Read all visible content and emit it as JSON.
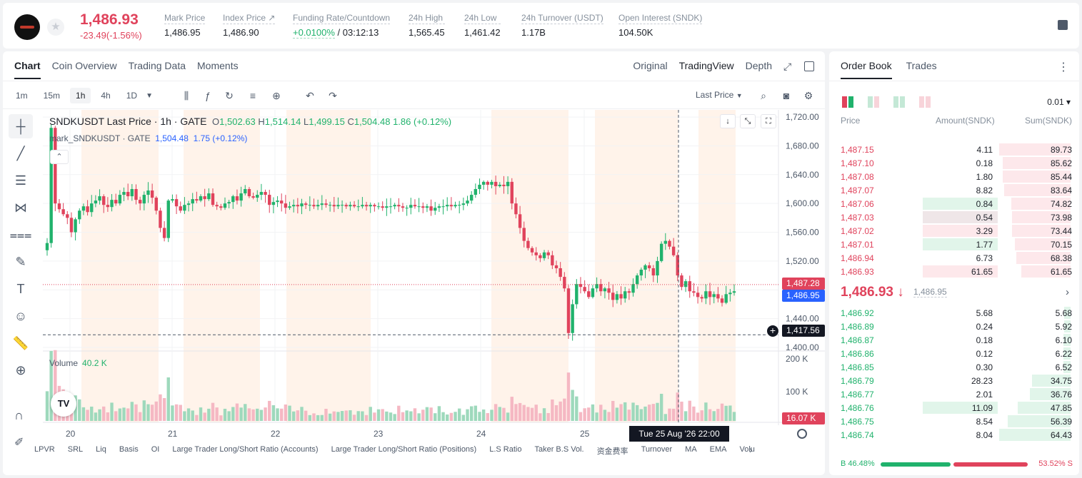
{
  "header": {
    "last_price": "1,486.93",
    "change": "-23.49(-1.56%)",
    "stats": [
      {
        "label": "Mark Price",
        "value": "1,486.95"
      },
      {
        "label": "Index Price ↗",
        "value": "1,486.90"
      },
      {
        "label": "Funding Rate/Countdown",
        "value_green": "+0.0100%",
        "value": " / 03:12:13"
      },
      {
        "label": "24h High",
        "value": "1,565.45"
      },
      {
        "label": "24h Low",
        "value": "1,461.42"
      },
      {
        "label": "24h Turnover (USDT)",
        "value": "1.17B"
      },
      {
        "label": "Open Interest (SNDK)",
        "value": "104.50K"
      }
    ]
  },
  "chart_tabs": {
    "left": [
      "Chart",
      "Coin Overview",
      "Trading Data",
      "Moments"
    ],
    "right": [
      "Original",
      "TradingView",
      "Depth"
    ]
  },
  "intervals": [
    "1m",
    "15m",
    "1h",
    "4h",
    "1D"
  ],
  "price_source": "Last Price",
  "legend": {
    "symbol": "SNDKUSDT Last Price · 1h · GATE",
    "o": "1,502.63",
    "h": "1,514.14",
    "l": "1,499.15",
    "c": "1,504.48",
    "chg": "1.86 (+0.12%)",
    "mark_name": "mark_SNDKUSDT · GATE",
    "mark_val": "1,504.48",
    "mark_chg": "1.75 (+0.12%)"
  },
  "volume_legend": {
    "label": "Volume",
    "value": "40.2 K"
  },
  "price_labels": {
    "last": "1,487.28",
    "mark": "1,486.95",
    "cross": "1,417.56",
    "vol": "16.07 K"
  },
  "time_label": "Tue 25 Aug '26   22:00",
  "tv_logo": "TV",
  "indicators": [
    "LPVR",
    "SRL",
    "Liq",
    "Basis",
    "OI",
    "Large Trader Long/Short Ratio (Accounts)",
    "Large Trader Long/Short Ratio (Positions)",
    "L.S Ratio",
    "Taker B.S Vol.",
    "资金费率",
    "Turnover",
    "MA",
    "EMA",
    "Volu"
  ],
  "colors": {
    "up": "#20b26c",
    "down": "#e0435c",
    "mark": "#2962ff"
  },
  "chart_data": {
    "type": "candlestick",
    "y_axis": {
      "ticks": [
        "1,720.00",
        "1,680.00",
        "1,640.00",
        "1,600.00",
        "1,560.00",
        "1,520.00",
        "1,480.00",
        "1,440.00",
        "1,400.00"
      ],
      "range": [
        1395,
        1730
      ]
    },
    "x_axis": {
      "ticks": [
        "20",
        "21",
        "22",
        "23",
        "24",
        "25"
      ]
    },
    "volume_axis": {
      "ticks": [
        "200 K",
        "100 K"
      ]
    },
    "close_series": [
      1545,
      1705,
      1600,
      1592,
      1585,
      1580,
      1560,
      1578,
      1590,
      1596,
      1588,
      1600,
      1604,
      1610,
      1598,
      1595,
      1605,
      1600,
      1612,
      1616,
      1610,
      1620,
      1605,
      1600,
      1612,
      1618,
      1608,
      1590,
      1566,
      1552,
      1604,
      1606,
      1596,
      1590,
      1598,
      1600,
      1606,
      1604,
      1610,
      1606,
      1614,
      1598,
      1596,
      1594,
      1600,
      1602,
      1610,
      1604,
      1614,
      1620,
      1610,
      1608,
      1612,
      1616,
      1612,
      1598,
      1602,
      1604,
      1600,
      1594,
      1596,
      1598,
      1596,
      1600,
      1598,
      1598,
      1596,
      1598,
      1600,
      1598,
      1598,
      1596,
      1598,
      1598,
      1596,
      1598,
      1596,
      1596,
      1598,
      1596,
      1598,
      1596,
      1596,
      1594,
      1596,
      1596,
      1598,
      1596,
      1594,
      1594,
      1598,
      1596,
      1596,
      1594,
      1596,
      1590,
      1594,
      1596,
      1596,
      1598,
      1596,
      1598,
      1598,
      1600,
      1604,
      1612,
      1620,
      1626,
      1630,
      1626,
      1630,
      1624,
      1626,
      1624,
      1630,
      1600,
      1585,
      1566,
      1548,
      1538,
      1532,
      1528,
      1524,
      1532,
      1528,
      1514,
      1510,
      1498,
      1482,
      1420,
      1460,
      1488,
      1484,
      1478,
      1470,
      1482,
      1488,
      1478,
      1482,
      1476,
      1466,
      1474,
      1468,
      1478,
      1476,
      1488,
      1500,
      1508,
      1514,
      1510,
      1500,
      1520,
      1544,
      1548,
      1540,
      1528,
      1500,
      1484,
      1492,
      1478,
      1476,
      1470,
      1468,
      1478,
      1470,
      1474,
      1468,
      1462,
      1474,
      1476,
      1478
    ],
    "last_price": 1487.28,
    "mark_price": 1486.95,
    "crosshair_price": 1417.56
  },
  "orderbook": {
    "tabs": [
      "Order Book",
      "Trades"
    ],
    "tick": "0.01 ▾",
    "headers": {
      "price": "Price",
      "amount": "Amount(SNDK)",
      "sum": "Sum(SNDK)"
    },
    "asks": [
      {
        "price": "1,487.15",
        "amount": "4.11",
        "sum": "89.73",
        "sum_frac": 1.0,
        "amt_frac": 0.0
      },
      {
        "price": "1,487.10",
        "amount": "0.18",
        "sum": "85.62",
        "sum_frac": 0.954,
        "amt_frac": 0.0
      },
      {
        "price": "1,487.08",
        "amount": "1.80",
        "sum": "85.44",
        "sum_frac": 0.952,
        "amt_frac": 0.0
      },
      {
        "price": "1,487.07",
        "amount": "8.82",
        "sum": "83.64",
        "sum_frac": 0.932,
        "amt_frac": 0.0
      },
      {
        "price": "1,487.06",
        "amount": "0.84",
        "sum": "74.82",
        "sum_frac": 0.834,
        "amt_frac": 0.95,
        "amt_green": true
      },
      {
        "price": "1,487.03",
        "amount": "0.54",
        "sum": "73.98",
        "sum_frac": 0.824,
        "amt_frac": 0.95,
        "amt_gray": true
      },
      {
        "price": "1,487.02",
        "amount": "3.29",
        "sum": "73.44",
        "sum_frac": 0.818,
        "amt_frac": 0.95
      },
      {
        "price": "1,487.01",
        "amount": "1.77",
        "sum": "70.15",
        "sum_frac": 0.782,
        "amt_frac": 0.95,
        "amt_green": true
      },
      {
        "price": "1,486.94",
        "amount": "6.73",
        "sum": "68.38",
        "sum_frac": 0.762,
        "amt_frac": 0.0
      },
      {
        "price": "1,486.93",
        "amount": "61.65",
        "sum": "61.65",
        "sum_frac": 0.687,
        "amt_frac": 0.95
      }
    ],
    "mid": {
      "price": "1,486.93 ↓",
      "mark": "1,486.95"
    },
    "bids": [
      {
        "price": "1,486.92",
        "amount": "5.68",
        "sum": "5.68",
        "sum_frac": 0.088
      },
      {
        "price": "1,486.89",
        "amount": "0.24",
        "sum": "5.92",
        "sum_frac": 0.092
      },
      {
        "price": "1,486.87",
        "amount": "0.18",
        "sum": "6.10",
        "sum_frac": 0.095
      },
      {
        "price": "1,486.86",
        "amount": "0.12",
        "sum": "6.22",
        "sum_frac": 0.097
      },
      {
        "price": "1,486.85",
        "amount": "0.30",
        "sum": "6.52",
        "sum_frac": 0.101
      },
      {
        "price": "1,486.79",
        "amount": "28.23",
        "sum": "34.75",
        "sum_frac": 0.539
      },
      {
        "price": "1,486.77",
        "amount": "2.01",
        "sum": "36.76",
        "sum_frac": 0.57
      },
      {
        "price": "1,486.76",
        "amount": "11.09",
        "sum": "47.85",
        "sum_frac": 0.742,
        "amt_frac": 0.95
      },
      {
        "price": "1,486.75",
        "amount": "8.54",
        "sum": "56.39",
        "sum_frac": 0.875
      },
      {
        "price": "1,486.74",
        "amount": "8.04",
        "sum": "64.43",
        "sum_frac": 1.0
      }
    ],
    "buy_ratio": "B 46.48%",
    "sell_ratio": "53.52% S"
  }
}
